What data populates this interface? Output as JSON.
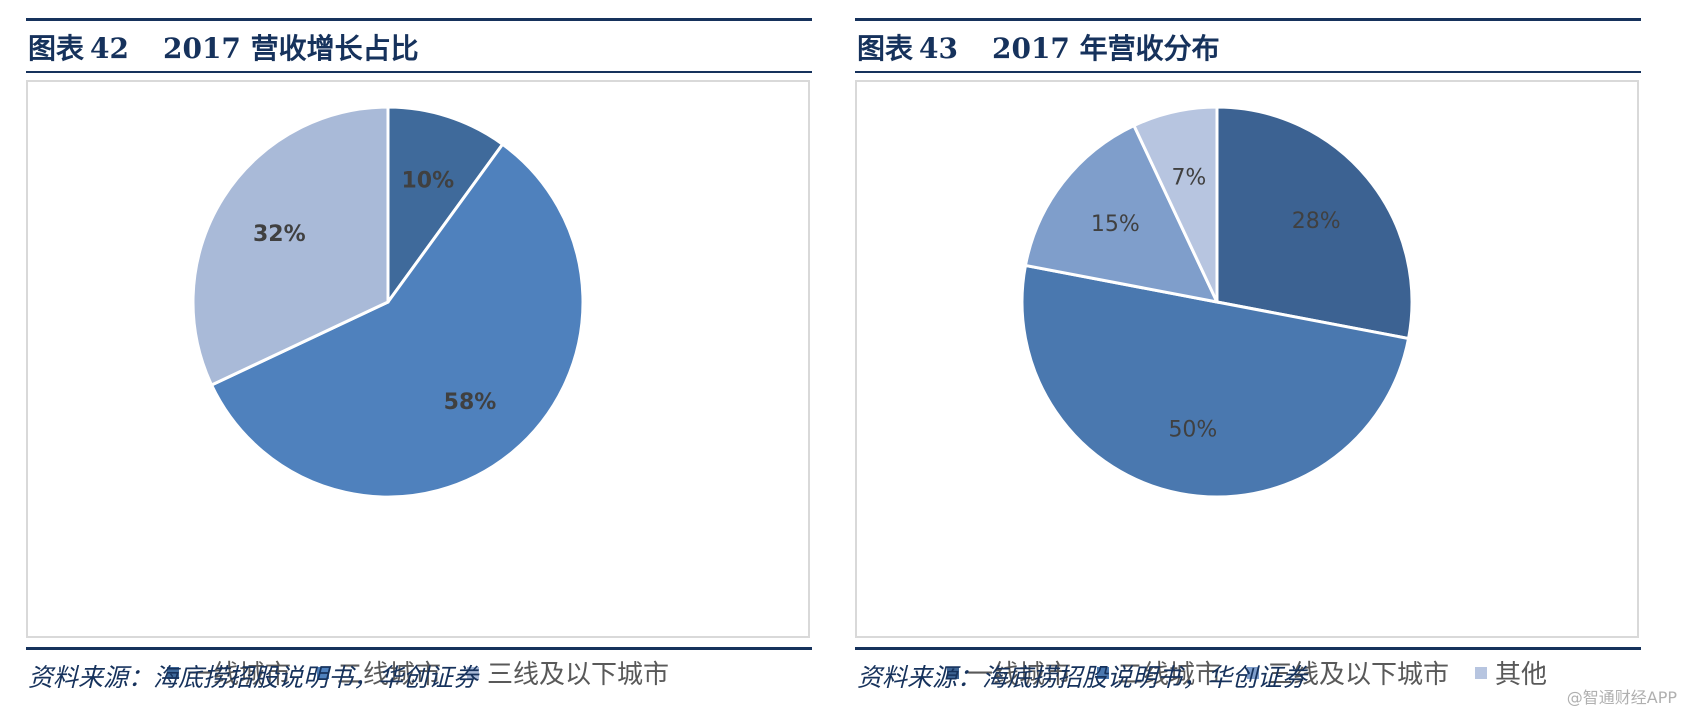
{
  "figures": [
    {
      "fig_label": "图表",
      "fig_number": "42",
      "fig_title": "2017 营收增长占比",
      "source": "资料来源：海底捞招股说明书，华创证券"
    },
    {
      "fig_label": "图表",
      "fig_number": "43",
      "fig_title": "2017 年营收分布",
      "source": "资料来源：海底捞招股说明书，华创证券"
    }
  ],
  "chart_data": [
    {
      "type": "pie",
      "title": "2017 营收增长占比",
      "categories": [
        "一线城市",
        "二线城市",
        "三线及以下城市"
      ],
      "values": [
        10,
        58,
        32
      ],
      "labels": [
        "10%",
        "58%",
        "32%"
      ],
      "colors": [
        "#3f6a9b",
        "#4f81bd",
        "#a9bad8"
      ],
      "label_style": "bold",
      "legend_position": "bottom"
    },
    {
      "type": "pie",
      "title": "2017 年营收分布",
      "categories": [
        "一线城市",
        "二线城市",
        "三线及以下城市",
        "其他"
      ],
      "values": [
        28,
        50,
        15,
        7
      ],
      "labels": [
        "28%",
        "50%",
        "15%",
        "7%"
      ],
      "colors": [
        "#3c6292",
        "#4a78af",
        "#7f9ecb",
        "#b7c5e0"
      ],
      "label_style": "normal",
      "legend_position": "bottom"
    }
  ],
  "watermark": "@智通财经APP"
}
